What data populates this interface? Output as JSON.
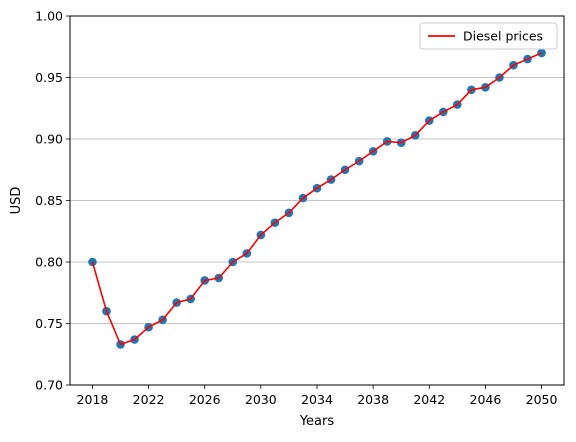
{
  "chart_data": {
    "type": "line",
    "title": "",
    "xlabel": "Years",
    "ylabel": "USD",
    "xlim": [
      2016.4,
      2051.6
    ],
    "ylim": [
      0.7,
      1.0
    ],
    "x_ticks": [
      2018,
      2022,
      2026,
      2030,
      2034,
      2038,
      2042,
      2046,
      2050
    ],
    "y_ticks": [
      0.7,
      0.75,
      0.8,
      0.85,
      0.9,
      0.95,
      1.0
    ],
    "y_tick_labels": [
      "0.70",
      "0.75",
      "0.80",
      "0.85",
      "0.90",
      "0.95",
      "1.00"
    ],
    "grid": "horizontal",
    "legend_position": "top-right",
    "x": [
      2018,
      2019,
      2020,
      2021,
      2022,
      2023,
      2024,
      2025,
      2026,
      2027,
      2028,
      2029,
      2030,
      2031,
      2032,
      2033,
      2034,
      2035,
      2036,
      2037,
      2038,
      2039,
      2040,
      2041,
      2042,
      2043,
      2044,
      2045,
      2046,
      2047,
      2048,
      2049,
      2050
    ],
    "series": [
      {
        "name": "Diesel prices",
        "color": "#ff0000",
        "marker_color": "#1f77b4",
        "values": [
          0.8,
          0.76,
          0.733,
          0.737,
          0.747,
          0.753,
          0.767,
          0.77,
          0.785,
          0.787,
          0.8,
          0.807,
          0.822,
          0.832,
          0.84,
          0.852,
          0.86,
          0.867,
          0.875,
          0.882,
          0.89,
          0.898,
          0.897,
          0.903,
          0.915,
          0.922,
          0.928,
          0.94,
          0.942,
          0.95,
          0.96,
          0.965,
          0.97
        ]
      }
    ]
  }
}
